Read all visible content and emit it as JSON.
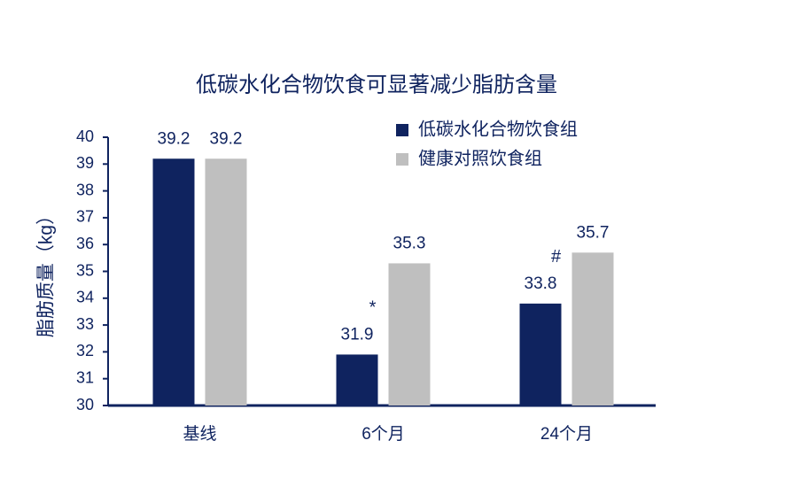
{
  "chart_data": {
    "type": "bar",
    "title": "低碳水化合物饮食可显著减少脂肪含量",
    "y_label": "脂肪质量（kg）",
    "categories": [
      "基线",
      "6个月",
      "24个月"
    ],
    "series": [
      {
        "name": "低碳水化合物饮食组",
        "color": "#0f235f",
        "values": [
          39.2,
          31.9,
          33.8
        ],
        "markers": [
          null,
          "*",
          "#"
        ]
      },
      {
        "name": "健康对照饮食组",
        "color": "#bfbfbf",
        "values": [
          39.2,
          35.3,
          35.7
        ]
      }
    ],
    "ylim": [
      30,
      40
    ],
    "yticks": [
      30,
      31,
      32,
      33,
      34,
      35,
      36,
      37,
      38,
      39,
      40
    ],
    "grid": false,
    "legend": "top-right"
  }
}
